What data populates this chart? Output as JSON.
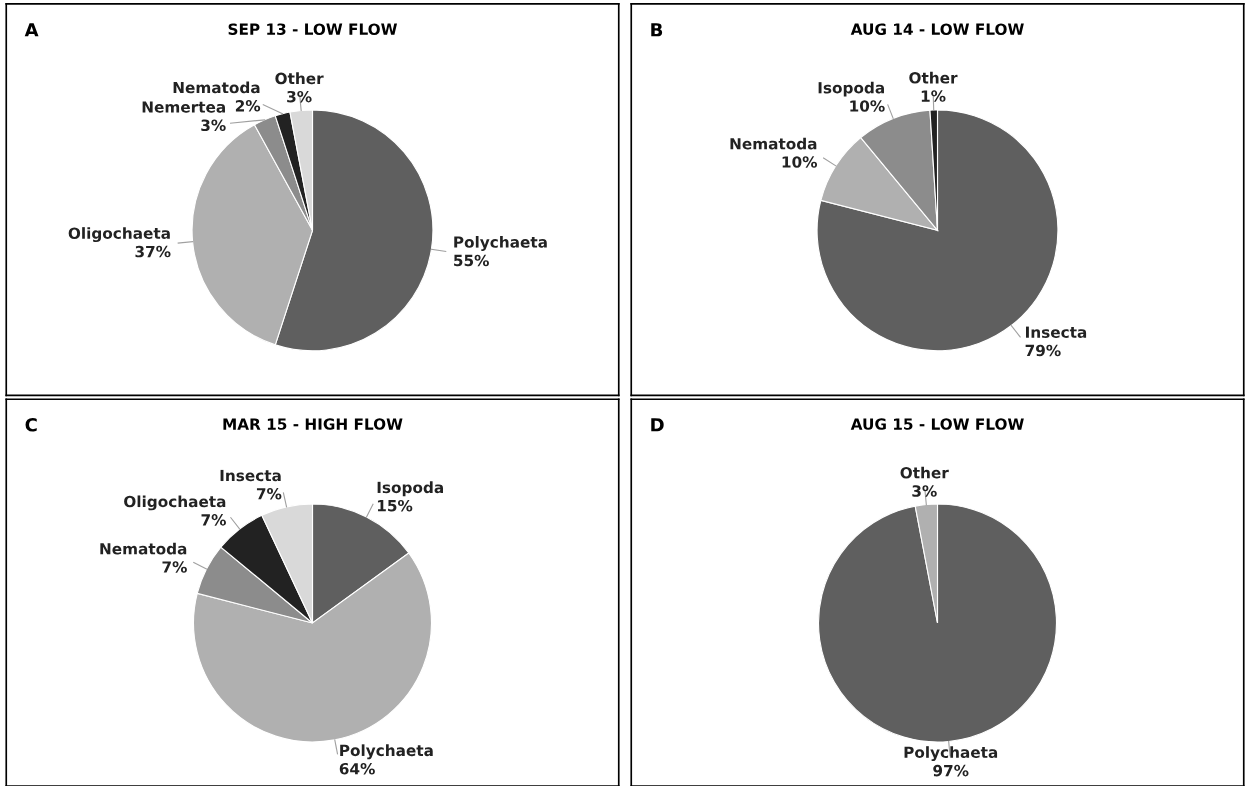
{
  "chart_data": [
    {
      "type": "pie",
      "title": "SEP 13 - LOW FLOW",
      "annotations": [
        "A"
      ],
      "categories": [
        "Polychaeta",
        "Oligochaeta",
        "Nemertea",
        "Nematoda",
        "Other"
      ],
      "values": [
        55,
        37,
        3,
        2,
        3
      ],
      "value_labels": [
        "55%",
        "37%",
        "3%",
        "2%",
        "3%"
      ],
      "colors": [
        "#5f5f5f",
        "#b0b0b0",
        "#8c8c8c",
        "#222222",
        "#d9d9d9"
      ]
    },
    {
      "type": "pie",
      "title": "AUG 14 - LOW FLOW",
      "annotations": [
        "B"
      ],
      "categories": [
        "Insecta",
        "Nematoda",
        "Isopoda",
        "Other"
      ],
      "values": [
        79,
        10,
        10,
        1
      ],
      "value_labels": [
        "79%",
        "10%",
        "10%",
        "1%"
      ],
      "colors": [
        "#5f5f5f",
        "#b0b0b0",
        "#8c8c8c",
        "#222222"
      ]
    },
    {
      "type": "pie",
      "title": "MAR 15 - HIGH FLOW",
      "annotations": [
        "C"
      ],
      "categories": [
        "Isopoda",
        "Polychaeta",
        "Nematoda",
        "Oligochaeta",
        "Insecta"
      ],
      "values": [
        15,
        64,
        7,
        7,
        7
      ],
      "value_labels": [
        "15%",
        "64%",
        "7%",
        "7%",
        "7%"
      ],
      "colors": [
        "#5f5f5f",
        "#b0b0b0",
        "#8c8c8c",
        "#222222",
        "#d9d9d9"
      ]
    },
    {
      "type": "pie",
      "title": "AUG 15 - LOW FLOW",
      "annotations": [
        "D"
      ],
      "categories": [
        "Polychaeta",
        "Other"
      ],
      "values": [
        97,
        3
      ],
      "value_labels": [
        "97%",
        "3%"
      ],
      "colors": [
        "#5f5f5f",
        "#b0b0b0"
      ]
    }
  ]
}
